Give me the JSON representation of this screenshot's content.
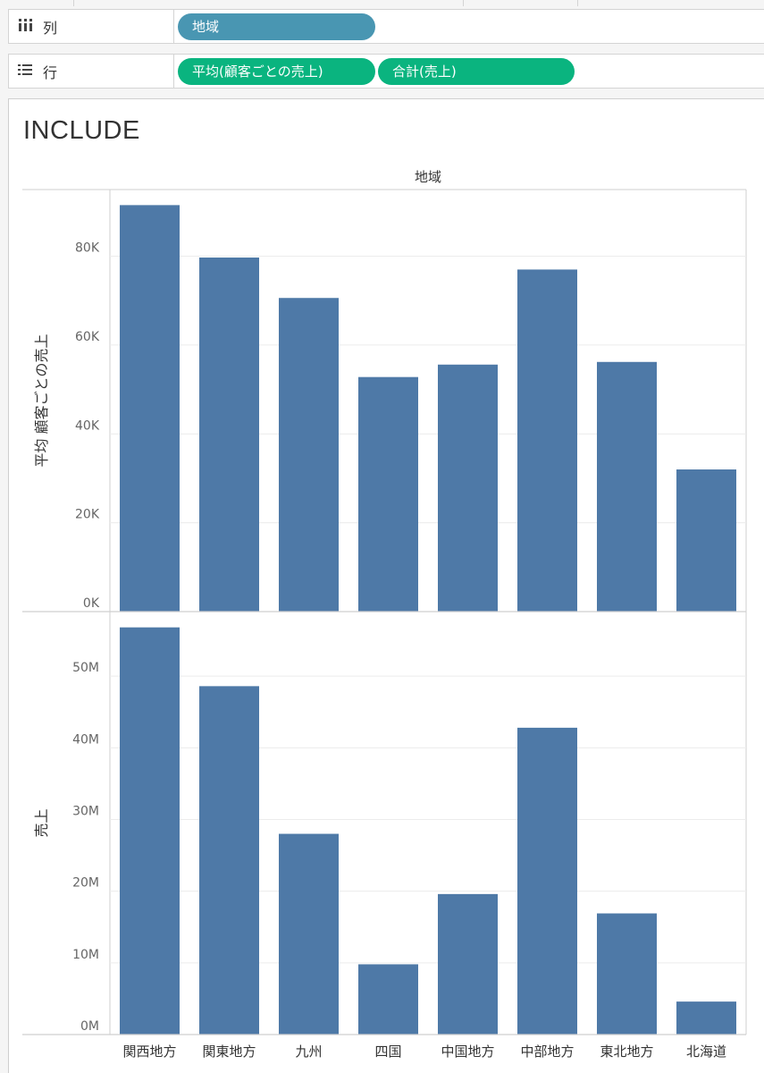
{
  "shelves": {
    "columns": {
      "label": "列",
      "icon": "columns-icon",
      "pills": [
        {
          "text": "地域",
          "kind": "dimension"
        }
      ]
    },
    "rows": {
      "label": "行",
      "icon": "rows-icon",
      "pills": [
        {
          "text": "平均(顧客ごとの売上)",
          "kind": "measure"
        },
        {
          "text": "合計(売上)",
          "kind": "measure"
        }
      ]
    }
  },
  "sheet": {
    "title": "INCLUDE",
    "column_header": "地域"
  },
  "colors": {
    "bar": "#4e79a7",
    "dimension_pill": "#4996b2",
    "measure_pill": "#0ab47f",
    "grid": "#ececec",
    "border": "#cfcfcf"
  },
  "chart_data": [
    {
      "type": "bar",
      "categories": [
        "関西地方",
        "関東地方",
        "九州",
        "四国",
        "中国地方",
        "中部地方",
        "東北地方",
        "北海道"
      ],
      "values": [
        91500,
        79700,
        70600,
        52800,
        55600,
        77000,
        56200,
        32000
      ],
      "ylabel": "平均 顧客ごとの売上",
      "ylim": [
        0,
        95000
      ],
      "yticks": [
        0,
        20000,
        40000,
        60000,
        80000
      ],
      "ytick_labels": [
        "0K",
        "20K",
        "40K",
        "60K",
        "80K"
      ],
      "grid": true
    },
    {
      "type": "bar",
      "categories": [
        "関西地方",
        "関東地方",
        "九州",
        "四国",
        "中国地方",
        "中部地方",
        "東北地方",
        "北海道"
      ],
      "values": [
        56800000,
        48600000,
        28000000,
        9800000,
        19600000,
        42800000,
        16900000,
        4600000
      ],
      "ylabel": "売上",
      "ylim": [
        0,
        59000000
      ],
      "yticks": [
        0,
        10000000,
        20000000,
        30000000,
        40000000,
        50000000
      ],
      "ytick_labels": [
        "0M",
        "10M",
        "20M",
        "30M",
        "40M",
        "50M"
      ],
      "grid": true
    }
  ]
}
